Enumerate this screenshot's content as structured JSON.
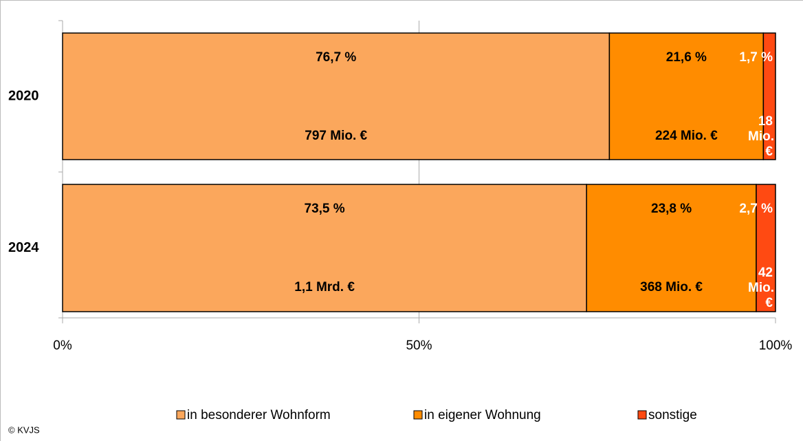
{
  "chart_data": {
    "type": "stacked-barh",
    "categories": [
      "2020",
      "2024"
    ],
    "series": [
      {
        "name": "in besonderer Wohnform",
        "color": "#fba75c",
        "values": [
          76.7,
          73.5
        ],
        "value_labels": [
          "76,7 %",
          "73,5 %"
        ],
        "amount_labels": [
          "797 Mio. €",
          "1,1 Mrd. €"
        ],
        "label_color": "#000000"
      },
      {
        "name": "in eigener Wohnung",
        "color": "#ff8c00",
        "values": [
          21.6,
          23.8
        ],
        "value_labels": [
          "21,6 %",
          "23,8 %"
        ],
        "amount_labels": [
          "224 Mio. €",
          "368 Mio. €"
        ],
        "label_color": "#000000"
      },
      {
        "name": "sonstige",
        "color": "#ff4a12",
        "values": [
          1.7,
          2.7
        ],
        "value_labels": [
          "1,7 %",
          "2,7 %"
        ],
        "amount_labels": [
          "18 Mio. €",
          "42 Mio. €"
        ],
        "label_color": "#ffffff"
      }
    ],
    "xlim": [
      0,
      100
    ],
    "xticks": [
      {
        "value": 0,
        "label": "0%"
      },
      {
        "value": 50,
        "label": "50%"
      },
      {
        "value": 100,
        "label": "100%"
      }
    ],
    "grid": true,
    "legend": "bottom",
    "source": "© KVJS"
  }
}
